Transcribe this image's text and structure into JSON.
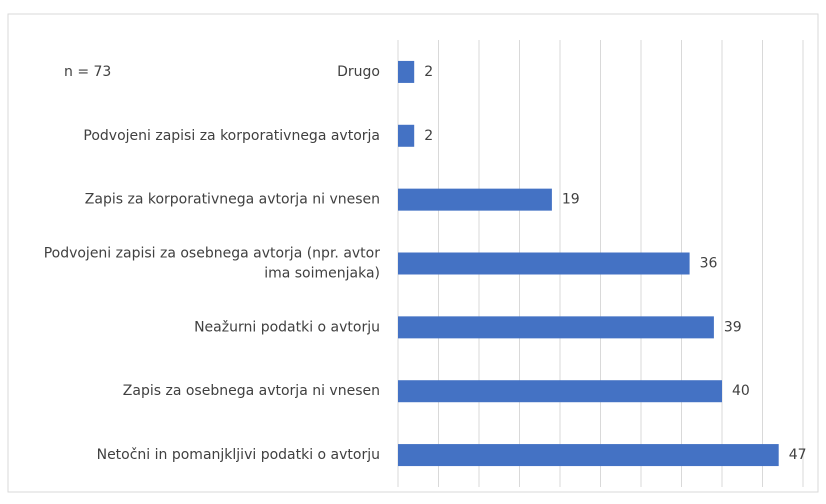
{
  "chart_data": {
    "type": "bar",
    "orientation": "horizontal",
    "annotation": "n = 73",
    "categories": [
      "Drugo",
      "Podvojeni zapisi za korporativnega avtorja",
      "Zapis za korporativnega avtorja ni vnesen",
      "Podvojeni zapisi za osebnega avtorja (npr. avtor ima soimenjaka)",
      "Neažurni podatki o avtorju",
      "Zapis za osebnega avtorja ni vnesen",
      "Netočni in pomanjkljivi podatki o avtorju"
    ],
    "values": [
      2,
      2,
      19,
      36,
      39,
      40,
      47
    ],
    "color": "#4472c4",
    "xlim": [
      0,
      50
    ],
    "xticks": [
      0,
      5,
      10,
      15,
      20,
      25,
      30,
      35,
      40,
      45,
      50
    ],
    "grid": true
  }
}
